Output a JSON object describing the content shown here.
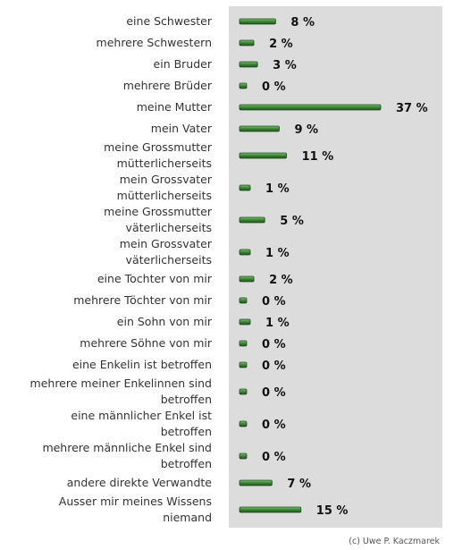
{
  "chart_data": {
    "type": "bar",
    "orientation": "horizontal",
    "categories": [
      [
        "eine Schwester"
      ],
      [
        "mehrere Schwestern"
      ],
      [
        "ein Bruder"
      ],
      [
        "mehrere Brüder"
      ],
      [
        "meine Mutter"
      ],
      [
        "mein Vater"
      ],
      [
        "meine Grossmutter",
        "mütterlicherseits"
      ],
      [
        "mein Grossvater",
        "mütterlicherseits"
      ],
      [
        "meine Grossmutter",
        "väterlicherseits"
      ],
      [
        "mein Grossvater",
        "väterlicherseits"
      ],
      [
        "eine Tochter von mir"
      ],
      [
        "mehrere Töchter von mir"
      ],
      [
        "ein Sohn von mir"
      ],
      [
        "mehrere Söhne von mir"
      ],
      [
        "eine Enkelin ist betroffen"
      ],
      [
        "mehrere meiner Enkelinnen sind",
        "betroffen"
      ],
      [
        "eine männlicher Enkel ist",
        "betroffen"
      ],
      [
        "mehrere männliche Enkel sind",
        "betroffen"
      ],
      [
        "andere direkte Verwandte"
      ],
      [
        "Ausser mir meines Wissens",
        "niemand"
      ]
    ],
    "values": [
      8,
      2,
      3,
      0,
      37,
      9,
      11,
      1,
      5,
      1,
      2,
      0,
      1,
      0,
      0,
      0,
      0,
      0,
      7,
      15
    ],
    "value_labels": [
      "8 %",
      "2 %",
      "3 %",
      "0 %",
      "37 %",
      "9 %",
      "11 %",
      "1 %",
      "5 %",
      "1 %",
      "2 %",
      "0 %",
      "1 %",
      "0 %",
      "0 %",
      "0 %",
      "0 %",
      "0 %",
      "7 %",
      "15 %"
    ],
    "unit": "%",
    "xlim": [
      0,
      37
    ],
    "grid": false,
    "colors": {
      "bar": "#3f8a3a",
      "bar_dark": "#1f4f1c",
      "bar_light": "#7cc474",
      "plot_background": "#dcdcdc"
    }
  },
  "credit": "(c) Uwe P. Kaczmarek"
}
